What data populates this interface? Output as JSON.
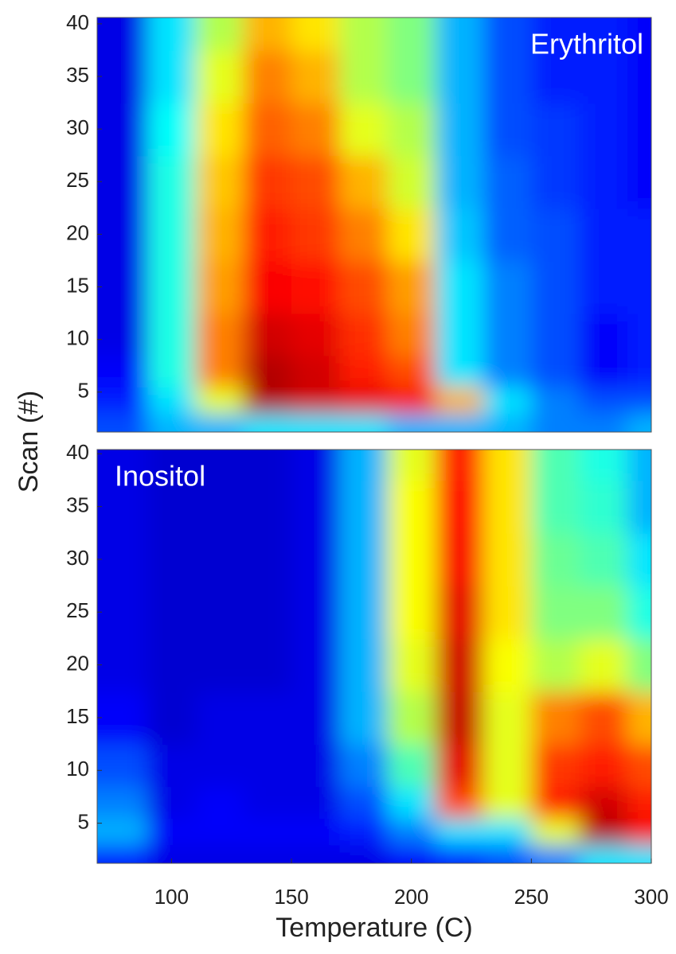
{
  "chart_data": [
    {
      "type": "heatmap",
      "label": "Erythritol",
      "label_corner": "top-right",
      "colormap": "jet",
      "zlim": [
        0,
        1
      ],
      "ylabel": "Scan (#)",
      "x": [
        80,
        100,
        120,
        140,
        160,
        180,
        200,
        220,
        240,
        260,
        280,
        300
      ],
      "y": [
        2,
        4,
        7,
        10,
        15,
        20,
        25,
        30,
        35,
        40
      ],
      "values": [
        [
          0.2,
          0.3,
          0.3,
          0.35,
          0.35,
          0.35,
          0.3,
          0.3,
          0.3,
          0.25,
          0.25,
          0.3
        ],
        [
          0.15,
          0.35,
          0.6,
          0.95,
          0.92,
          0.9,
          0.88,
          0.7,
          0.35,
          0.25,
          0.2,
          0.2
        ],
        [
          0.12,
          0.4,
          0.75,
          0.95,
          0.92,
          0.85,
          0.8,
          0.35,
          0.25,
          0.2,
          0.12,
          0.15
        ],
        [
          0.1,
          0.4,
          0.75,
          0.92,
          0.9,
          0.83,
          0.75,
          0.35,
          0.25,
          0.2,
          0.12,
          0.15
        ],
        [
          0.1,
          0.4,
          0.72,
          0.88,
          0.86,
          0.8,
          0.72,
          0.35,
          0.25,
          0.2,
          0.15,
          0.15
        ],
        [
          0.1,
          0.4,
          0.7,
          0.85,
          0.82,
          0.75,
          0.65,
          0.32,
          0.22,
          0.2,
          0.15,
          0.15
        ],
        [
          0.1,
          0.4,
          0.68,
          0.82,
          0.8,
          0.7,
          0.58,
          0.3,
          0.22,
          0.18,
          0.15,
          0.12
        ],
        [
          0.1,
          0.38,
          0.65,
          0.78,
          0.75,
          0.6,
          0.55,
          0.3,
          0.2,
          0.18,
          0.15,
          0.12
        ],
        [
          0.1,
          0.35,
          0.6,
          0.75,
          0.7,
          0.55,
          0.5,
          0.3,
          0.2,
          0.15,
          0.15,
          0.12
        ],
        [
          0.1,
          0.35,
          0.55,
          0.7,
          0.65,
          0.55,
          0.5,
          0.3,
          0.2,
          0.15,
          0.15,
          0.12
        ]
      ],
      "xlim": [
        69,
        300
      ],
      "ylim": [
        1.2,
        40.6
      ],
      "yticks": [
        5,
        10,
        15,
        20,
        25,
        30,
        35,
        40
      ]
    },
    {
      "type": "heatmap",
      "label": "Inositol",
      "label_corner": "top-left",
      "colormap": "jet",
      "zlim": [
        0,
        1
      ],
      "xlabel": "Temperature (C)",
      "x": [
        80,
        100,
        120,
        140,
        160,
        180,
        200,
        220,
        240,
        260,
        280,
        300
      ],
      "y": [
        2,
        4,
        7,
        10,
        15,
        20,
        25,
        30,
        35,
        40
      ],
      "values": [
        [
          0.15,
          0.1,
          0.1,
          0.1,
          0.1,
          0.1,
          0.12,
          0.15,
          0.2,
          0.25,
          0.35,
          0.35
        ],
        [
          0.3,
          0.12,
          0.12,
          0.12,
          0.12,
          0.15,
          0.25,
          0.35,
          0.35,
          0.6,
          0.95,
          0.88
        ],
        [
          0.25,
          0.1,
          0.12,
          0.1,
          0.1,
          0.2,
          0.35,
          0.8,
          0.6,
          0.85,
          0.92,
          0.85
        ],
        [
          0.2,
          0.1,
          0.1,
          0.1,
          0.1,
          0.25,
          0.45,
          0.9,
          0.6,
          0.82,
          0.85,
          0.8
        ],
        [
          0.12,
          0.08,
          0.1,
          0.1,
          0.1,
          0.3,
          0.55,
          0.93,
          0.6,
          0.75,
          0.8,
          0.7
        ],
        [
          0.1,
          0.08,
          0.08,
          0.08,
          0.1,
          0.3,
          0.6,
          0.92,
          0.62,
          0.55,
          0.6,
          0.5
        ],
        [
          0.1,
          0.08,
          0.08,
          0.08,
          0.1,
          0.3,
          0.62,
          0.9,
          0.65,
          0.5,
          0.5,
          0.4
        ],
        [
          0.1,
          0.08,
          0.08,
          0.08,
          0.1,
          0.3,
          0.62,
          0.88,
          0.65,
          0.48,
          0.45,
          0.35
        ],
        [
          0.1,
          0.08,
          0.08,
          0.08,
          0.1,
          0.3,
          0.62,
          0.87,
          0.65,
          0.45,
          0.42,
          0.3
        ],
        [
          0.1,
          0.08,
          0.08,
          0.08,
          0.1,
          0.3,
          0.6,
          0.85,
          0.65,
          0.45,
          0.4,
          0.3
        ]
      ],
      "xlim": [
        69,
        300
      ],
      "xticks": [
        100,
        150,
        200,
        250,
        300
      ],
      "ylim": [
        1.2,
        40.4
      ],
      "yticks": [
        5,
        10,
        15,
        20,
        25,
        30,
        35,
        40
      ]
    }
  ]
}
